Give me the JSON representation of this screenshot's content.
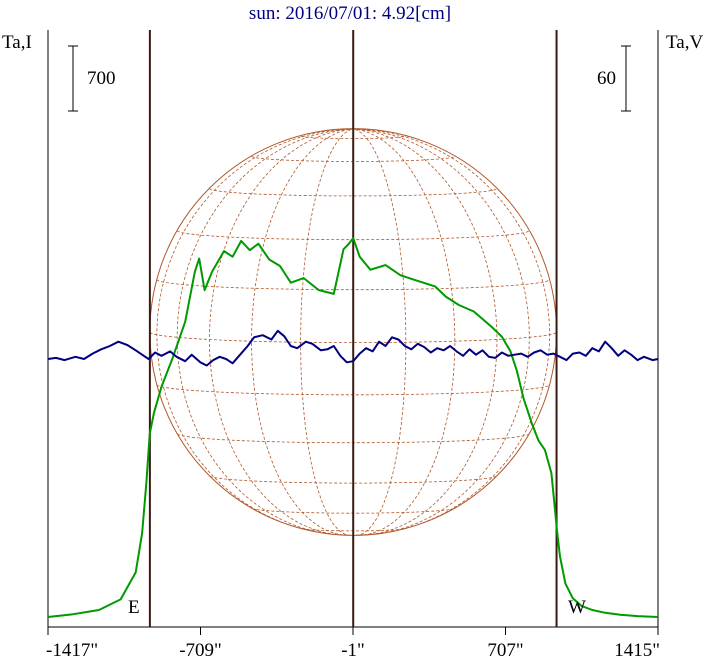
{
  "chart_data": {
    "type": "line",
    "title": "sun: 2016/07/01: 4.92[cm]",
    "left_axis_label": "Ta,I",
    "right_axis_label": "Ta,V",
    "left_scale_bar_label": "700",
    "right_scale_bar_label": "60",
    "east_label": "E",
    "west_label": "W",
    "x_ticks": [
      {
        "value": -1417,
        "label": "-1417\""
      },
      {
        "value": -709,
        "label": "-709\""
      },
      {
        "value": -1,
        "label": "-1\""
      },
      {
        "value": 707,
        "label": "707\""
      },
      {
        "value": 1415,
        "label": "1415\""
      }
    ],
    "xlim": [
      -1417,
      1415
    ],
    "limb_markers_arcsec": [
      -944,
      0,
      944
    ],
    "solar_disk_radius_arcsec": 944,
    "colors": {
      "stokes_i": "#009900",
      "stokes_v": "#000080",
      "disk_grid": "#b0582a",
      "limb_lines": "#3a1a10",
      "title": "#000080",
      "text": "#000000"
    },
    "series": [
      {
        "id": "I",
        "color": "#009900",
        "x": [
          -1417,
          -1300,
          -1180,
          -1080,
          -1010,
          -980,
          -960,
          -945,
          -925,
          -890,
          -840,
          -780,
          -735,
          -715,
          -690,
          -655,
          -600,
          -560,
          -520,
          -480,
          -440,
          -390,
          -340,
          -290,
          -230,
          -160,
          -90,
          -45,
          -20,
          0,
          30,
          80,
          150,
          220,
          300,
          380,
          430,
          490,
          560,
          640,
          690,
          730,
          760,
          790,
          830,
          860,
          890,
          920,
          935,
          945,
          960,
          985,
          1020,
          1060,
          1110,
          1170,
          1240,
          1320,
          1415
        ],
        "values": [
          0,
          30,
          75,
          190,
          480,
          900,
          1450,
          1970,
          2200,
          2480,
          2780,
          3180,
          3720,
          3860,
          3520,
          3720,
          3940,
          3880,
          4050,
          3950,
          4020,
          3850,
          3780,
          3600,
          3650,
          3520,
          3480,
          3960,
          4020,
          4080,
          3880,
          3740,
          3790,
          3680,
          3620,
          3560,
          3450,
          3360,
          3290,
          3130,
          3020,
          2860,
          2650,
          2360,
          2080,
          1900,
          1800,
          1550,
          1200,
          950,
          650,
          360,
          200,
          120,
          75,
          45,
          25,
          10,
          0
        ]
      },
      {
        "id": "V",
        "color": "#000080",
        "x": [
          -1417,
          -1380,
          -1340,
          -1290,
          -1250,
          -1210,
          -1170,
          -1130,
          -1090,
          -1050,
          -1010,
          -980,
          -950,
          -920,
          -890,
          -850,
          -820,
          -780,
          -750,
          -710,
          -680,
          -650,
          -620,
          -590,
          -560,
          -530,
          -490,
          -460,
          -420,
          -380,
          -350,
          -320,
          -290,
          -260,
          -220,
          -190,
          -150,
          -120,
          -90,
          -60,
          -30,
          0,
          30,
          60,
          90,
          120,
          150,
          180,
          210,
          240,
          270,
          300,
          330,
          360,
          390,
          420,
          450,
          480,
          510,
          540,
          570,
          600,
          630,
          660,
          690,
          720,
          750,
          780,
          810,
          840,
          870,
          900,
          930,
          960,
          990,
          1020,
          1050,
          1080,
          1110,
          1140,
          1170,
          1200,
          1230,
          1260,
          1290,
          1320,
          1350,
          1390,
          1415
        ],
        "values": [
          0,
          1,
          -1,
          2,
          0,
          5,
          9,
          12,
          16,
          13,
          8,
          4,
          0,
          6,
          3,
          7,
          2,
          -2,
          4,
          -3,
          -6,
          -1,
          2,
          0,
          -4,
          3,
          12,
          20,
          22,
          18,
          26,
          21,
          12,
          10,
          16,
          14,
          8,
          9,
          12,
          3,
          -3,
          -2,
          5,
          10,
          7,
          16,
          12,
          20,
          18,
          12,
          9,
          14,
          11,
          6,
          10,
          8,
          12,
          7,
          3,
          9,
          4,
          8,
          2,
          1,
          6,
          3,
          4,
          5,
          2,
          6,
          8,
          4,
          5,
          2,
          -1,
          5,
          6,
          3,
          10,
          7,
          16,
          10,
          3,
          8,
          4,
          -1,
          2,
          -1,
          0
        ]
      }
    ],
    "disk_grid": {
      "latitudes_deg": [
        -75,
        -60,
        -45,
        -30,
        -15,
        0,
        15,
        30,
        45,
        60,
        75
      ],
      "longitudes_deg": [
        -75,
        -60,
        -45,
        -30,
        -15,
        0,
        15,
        30,
        45,
        60,
        75
      ],
      "b0_deg": 3
    }
  }
}
